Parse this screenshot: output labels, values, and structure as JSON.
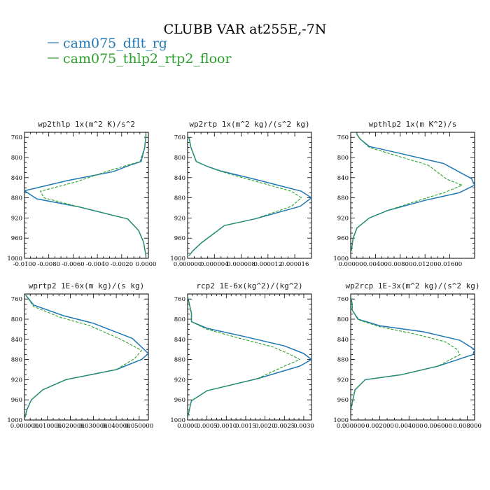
{
  "figure": {
    "title": "CLUBB VAR at255E,-7N",
    "legend": [
      {
        "label": "cam075_dflt_rg",
        "color": "#1f77b4"
      },
      {
        "label": "cam075_thlp2_rtp2_floor",
        "color": "#2ca02c"
      }
    ]
  },
  "chart_data": [
    {
      "type": "line",
      "title": "wp2thlp  1x(m^2 K)/s^2",
      "y_axis": "pressure",
      "ylim": [
        1000,
        750
      ],
      "y_reversed": true,
      "yticks": [
        760,
        800,
        840,
        880,
        920,
        960,
        1000
      ],
      "xlim": [
        -0.01,
        0.0002
      ],
      "xticks": [
        -0.01,
        -0.008,
        -0.006,
        -0.004,
        -0.002,
        0.0
      ],
      "xtick_labels": [
        "-0.0100",
        "-0.0080",
        "-0.0060",
        "-0.0040",
        "-0.0020",
        "0.0000"
      ],
      "series": [
        {
          "name": "cam075_dflt_rg",
          "color": "#1f77b4",
          "dash": false,
          "x": [
            0.0,
            -0.0001,
            -0.0004,
            -0.0013,
            -0.0027,
            -0.0065,
            -0.01,
            -0.009,
            -0.0055,
            -0.0015,
            -0.0006,
            -0.0002,
            0.0
          ],
          "y": [
            755,
            780,
            808,
            815,
            828,
            846,
            866,
            882,
            898,
            922,
            945,
            968,
            995
          ]
        },
        {
          "name": "cam075_thlp2_rtp2_floor",
          "color": "#2ca02c",
          "dash": true,
          "x": [
            0.0,
            -0.0001,
            -0.0005,
            -0.0015,
            -0.0033,
            -0.0057,
            -0.0087,
            -0.0084,
            -0.0055,
            -0.0015,
            -0.0006,
            -0.0002,
            0.0
          ],
          "y": [
            755,
            780,
            808,
            815,
            828,
            848,
            867,
            880,
            898,
            922,
            945,
            968,
            995
          ]
        }
      ]
    },
    {
      "type": "line",
      "title": "wp2rtp  1x(m^2 kg)/(s^2 kg)",
      "y_axis": "pressure",
      "ylim": [
        1000,
        750
      ],
      "y_reversed": true,
      "yticks": [
        760,
        800,
        840,
        880,
        920,
        960,
        1000
      ],
      "xlim": [
        0.0,
        1.85e-05
      ],
      "xticks": [
        0.0,
        4e-06,
        8e-06,
        1.2e-05,
        1.6e-05
      ],
      "xtick_labels": [
        "0.000000",
        "0.000004",
        "0.000008",
        "0.000012",
        "0.000016"
      ],
      "series": [
        {
          "name": "cam075_dflt_rg",
          "color": "#1f77b4",
          "dash": false,
          "x": [
            2e-07,
            5e-07,
            1.3e-06,
            3e-06,
            5e-06,
            1e-05,
            1.7e-05,
            1.85e-05,
            1.68e-05,
            1e-05,
            5.5e-06,
            4e-06,
            2e-06,
            8e-07,
            2e-07
          ],
          "y": [
            760,
            780,
            808,
            818,
            827,
            843,
            867,
            880,
            897,
            922,
            935,
            950,
            970,
            985,
            995
          ]
        },
        {
          "name": "cam075_thlp2_rtp2_floor",
          "color": "#2ca02c",
          "dash": true,
          "x": [
            2e-07,
            5e-07,
            1.3e-06,
            3e-06,
            4.8e-06,
            9e-06,
            1.55e-05,
            1.7e-05,
            1.55e-05,
            1e-05,
            5.5e-06,
            4e-06,
            2e-06,
            8e-07,
            2e-07
          ],
          "y": [
            760,
            780,
            808,
            818,
            827,
            843,
            867,
            880,
            897,
            922,
            935,
            950,
            970,
            985,
            995
          ]
        }
      ]
    },
    {
      "type": "line",
      "title": "wpthlp2  1x(m K^2)/s",
      "y_axis": "pressure",
      "ylim": [
        1000,
        750
      ],
      "y_reversed": true,
      "yticks": [
        760,
        800,
        840,
        880,
        920,
        960,
        1000
      ],
      "xlim": [
        0.0,
        0.02
      ],
      "xticks": [
        0.0,
        0.004,
        0.008,
        0.012,
        0.016
      ],
      "xtick_labels": [
        "0.00000",
        "0.00400",
        "0.00800",
        "0.01200",
        "0.01600"
      ],
      "series": [
        {
          "name": "cam075_dflt_rg",
          "color": "#1f77b4",
          "dash": false,
          "x": [
            0.0009,
            0.0015,
            0.003,
            0.008,
            0.015,
            0.0195,
            0.02,
            0.0175,
            0.012,
            0.006,
            0.003,
            0.001,
            0.0004,
            0.0001
          ],
          "y": [
            752,
            763,
            778,
            792,
            812,
            842,
            855,
            870,
            885,
            905,
            920,
            940,
            960,
            985
          ]
        },
        {
          "name": "cam075_thlp2_rtp2_floor",
          "color": "#2ca02c",
          "dash": true,
          "x": [
            0.0009,
            0.0015,
            0.003,
            0.007,
            0.0125,
            0.0155,
            0.018,
            0.015,
            0.011,
            0.006,
            0.003,
            0.001,
            0.0004,
            0.0001
          ],
          "y": [
            752,
            763,
            780,
            795,
            815,
            843,
            855,
            870,
            885,
            905,
            920,
            940,
            960,
            985
          ]
        }
      ]
    },
    {
      "type": "line",
      "title": "wprtp2  1E-6x(m kg)/(s kg)",
      "y_axis": "pressure",
      "ylim": [
        1000,
        750
      ],
      "y_reversed": true,
      "yticks": [
        760,
        800,
        840,
        880,
        920,
        960,
        1000
      ],
      "xlim": [
        0.0,
        0.054
      ],
      "xticks": [
        0.0,
        0.01,
        0.02,
        0.03,
        0.04,
        0.05
      ],
      "xtick_labels": [
        "0.000000",
        "0.010000",
        "0.020000",
        "0.030000",
        "0.040000",
        "0.050000"
      ],
      "series": [
        {
          "name": "cam075_dflt_rg",
          "color": "#1f77b4",
          "dash": false,
          "x": [
            0.0005,
            0.004,
            0.017,
            0.03,
            0.047,
            0.054,
            0.051,
            0.04,
            0.018,
            0.008,
            0.003,
            0.001,
            0.0002
          ],
          "y": [
            752,
            772,
            793,
            808,
            838,
            868,
            880,
            900,
            920,
            940,
            960,
            980,
            995
          ]
        },
        {
          "name": "cam075_thlp2_rtp2_floor",
          "color": "#2ca02c",
          "dash": true,
          "x": [
            0.0005,
            0.004,
            0.016,
            0.028,
            0.042,
            0.051,
            0.048,
            0.04,
            0.018,
            0.008,
            0.003,
            0.001,
            0.0002
          ],
          "y": [
            752,
            775,
            797,
            812,
            840,
            862,
            878,
            900,
            920,
            940,
            960,
            980,
            995
          ]
        }
      ]
    },
    {
      "type": "line",
      "title": "rcp2  1E-6x(kg^2)/(kg^2)",
      "y_axis": "pressure",
      "ylim": [
        1000,
        750
      ],
      "y_reversed": true,
      "yticks": [
        760,
        800,
        840,
        880,
        920,
        960,
        1000
      ],
      "xlim": [
        0.0,
        0.0032
      ],
      "xticks": [
        0.0,
        0.0005,
        0.001,
        0.0015,
        0.002,
        0.0025,
        0.003
      ],
      "xtick_labels": [
        "0.0000",
        "0.0005",
        "0.0010",
        "0.0015",
        "0.0020",
        "0.0025",
        "0.0030"
      ],
      "series": [
        {
          "name": "cam075_dflt_rg",
          "color": "#1f77b4",
          "dash": false,
          "x": [
            0.0,
            0.0001,
            0.0001,
            0.0005,
            0.0015,
            0.0025,
            0.003,
            0.0032,
            0.0029,
            0.0018,
            0.0005,
            0.0001,
            0.0
          ],
          "y": [
            755,
            788,
            805,
            818,
            835,
            853,
            868,
            880,
            893,
            918,
            942,
            962,
            995
          ]
        },
        {
          "name": "cam075_thlp2_rtp2_floor",
          "color": "#2ca02c",
          "dash": true,
          "x": [
            0.0,
            0.0001,
            0.0001,
            0.0005,
            0.0013,
            0.0022,
            0.0026,
            0.0029,
            0.0025,
            0.0018,
            0.0005,
            0.0001,
            0.0
          ],
          "y": [
            755,
            788,
            805,
            820,
            837,
            855,
            868,
            880,
            893,
            918,
            942,
            962,
            995
          ]
        }
      ]
    },
    {
      "type": "line",
      "title": "wp2rcp  1E-3x(m^2 kg)/(s^2 kg)",
      "y_axis": "pressure",
      "ylim": [
        1000,
        750
      ],
      "y_reversed": true,
      "yticks": [
        760,
        800,
        840,
        880,
        920,
        960,
        1000
      ],
      "xlim": [
        0.0,
        0.0085
      ],
      "xticks": [
        0.0,
        0.002,
        0.004,
        0.006,
        0.008
      ],
      "xtick_labels": [
        "0.000000",
        "0.002000",
        "0.004000",
        "0.006000",
        "0.008000"
      ],
      "series": [
        {
          "name": "cam075_dflt_rg",
          "color": "#1f77b4",
          "dash": false,
          "x": [
            0.0,
            0.0001,
            0.0001,
            0.0005,
            0.002,
            0.005,
            0.0075,
            0.0085,
            0.0084,
            0.006,
            0.0035,
            0.001,
            0.0003,
            0.0
          ],
          "y": [
            755,
            770,
            782,
            800,
            813,
            825,
            842,
            860,
            870,
            893,
            910,
            920,
            940,
            980
          ]
        },
        {
          "name": "cam075_thlp2_rtp2_floor",
          "color": "#2ca02c",
          "dash": true,
          "x": [
            0.0,
            0.0001,
            0.0001,
            0.0006,
            0.002,
            0.0045,
            0.0065,
            0.0073,
            0.0075,
            0.006,
            0.0035,
            0.001,
            0.0003,
            0.0
          ],
          "y": [
            755,
            770,
            782,
            802,
            815,
            830,
            845,
            860,
            870,
            893,
            910,
            920,
            940,
            980
          ]
        }
      ]
    }
  ]
}
